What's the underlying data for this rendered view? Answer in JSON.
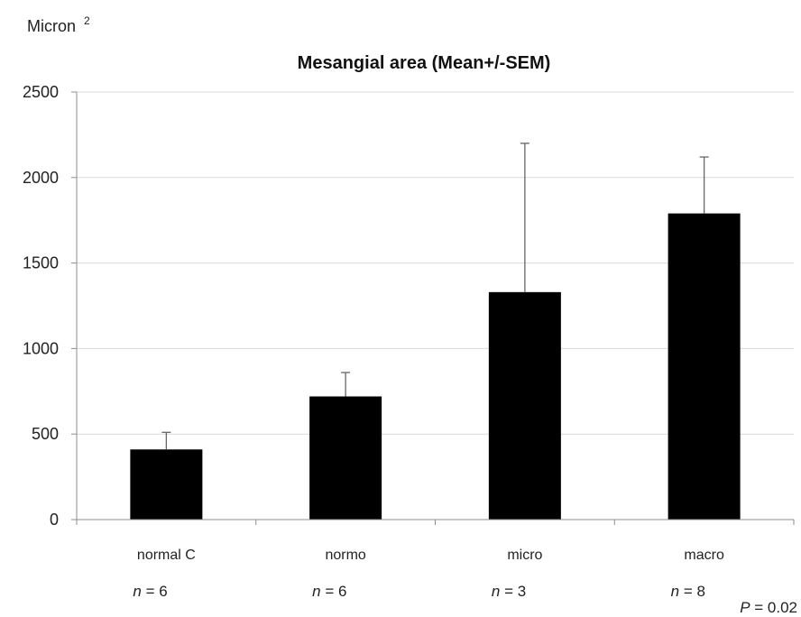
{
  "chart_data": {
    "type": "bar",
    "title": "Mesangial area (Mean+/-SEM)",
    "y_unit_label": "Micron",
    "y_unit_superscript": "2",
    "xlabel": "",
    "ylabel": "",
    "ylim": [
      0,
      2500
    ],
    "yticks": [
      0,
      500,
      1000,
      1500,
      2000,
      2500
    ],
    "grid": true,
    "categories": [
      "normal C",
      "normo",
      "micro",
      "macro"
    ],
    "values": [
      410,
      720,
      1330,
      1790
    ],
    "error_upper": [
      510,
      860,
      2200,
      2120
    ],
    "sample_sizes": [
      "6",
      "6",
      "3",
      "8"
    ],
    "n_italic_prefix": "n",
    "n_separator": " = ",
    "p_italic_prefix": "P",
    "p_value_text": " = 0.02",
    "colors": {
      "bar": "#000000",
      "grid": "#d9d9d9",
      "axis": "#8c8c8c",
      "error_bar": "#666666"
    }
  }
}
